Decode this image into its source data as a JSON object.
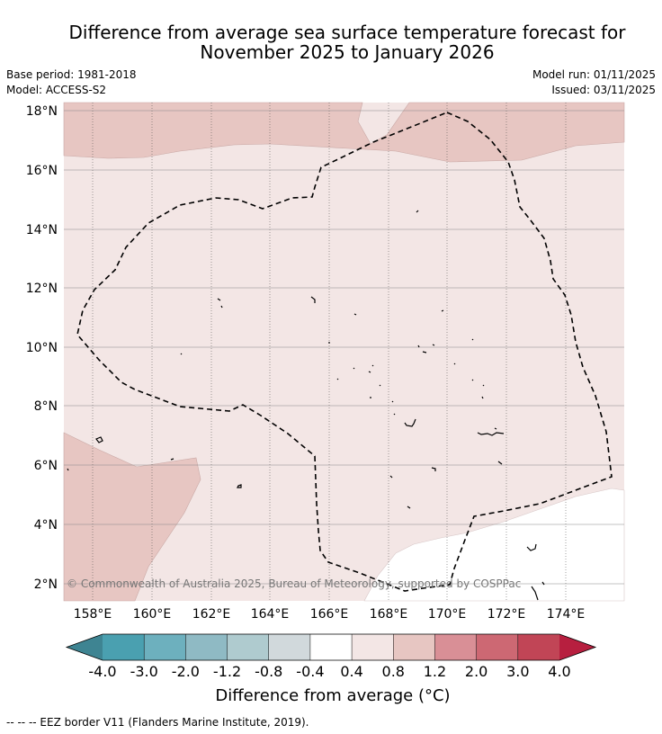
{
  "title": {
    "line1": "Difference from average sea surface temperature forecast for",
    "line2": "November 2025 to January 2026"
  },
  "meta": {
    "base_period": "Base period: 1981-2018",
    "model": "Model: ACCESS-S2",
    "model_run": "Model run: 01/11/2025",
    "issued": "Issued: 03/11/2025"
  },
  "map": {
    "lon_labels": [
      "158°E",
      "160°E",
      "162°E",
      "164°E",
      "166°E",
      "168°E",
      "170°E",
      "172°E",
      "174°E"
    ],
    "lat_labels": [
      "18°N",
      "16°N",
      "14°N",
      "12°N",
      "10°N",
      "8°N",
      "6°N",
      "4°N",
      "2°N"
    ],
    "copyright": "© Commonwealth of Australia 2025, Bureau of Meteorology, supported by COSPPac"
  },
  "colorbar": {
    "ticks": [
      "-4.0",
      "-3.0",
      "-2.0",
      "-1.2",
      "-0.8",
      "-0.4",
      "0.4",
      "0.8",
      "1.2",
      "2.0",
      "3.0",
      "4.0"
    ],
    "colors": [
      "#3e8492",
      "#4aa0b0",
      "#6db0be",
      "#8fbac4",
      "#afcbcf",
      "#d1d9dc",
      "#ffffff",
      "#f3e6e5",
      "#e7c6c2",
      "#d98f96",
      "#cd6873",
      "#c14556",
      "#b71f3f"
    ],
    "label": "Difference from average (°C)"
  },
  "footnote": "--  --  -- EEZ border V11 (Flanders Marine Institute, 2019)."
}
